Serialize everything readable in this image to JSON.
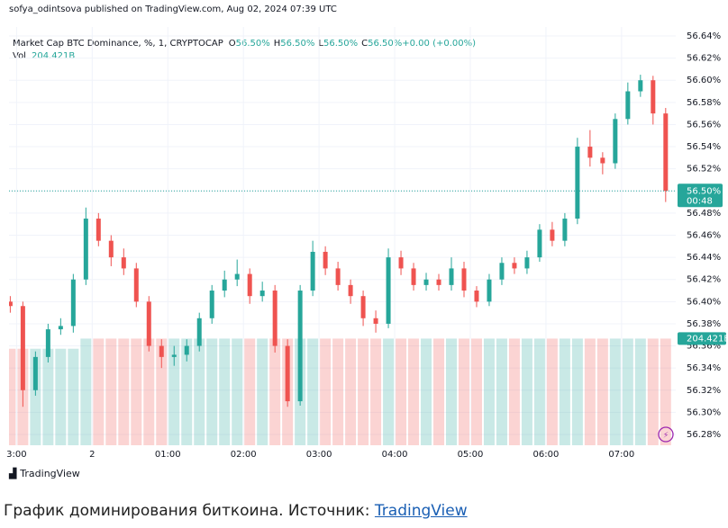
{
  "header": {
    "author": "sofya_odintsova published on TradingView.com, Aug 02, 2024 07:39 UTC"
  },
  "chart_data": {
    "type": "candlestick",
    "title": "Market Cap BTC Dominance, %, 1, CRYPTOCAP",
    "legend_ohlc": [
      {
        "key": "O",
        "text": "56.50%"
      },
      {
        "key": "H",
        "text": "56.50%"
      },
      {
        "key": "L",
        "text": "56.50%"
      },
      {
        "key": "C",
        "text": "56.50%"
      },
      {
        "key": "",
        "text": "+0.00 (+0.00%)"
      }
    ],
    "volume_title": "Vol",
    "volume_text": "204.421B",
    "up_color": "#26a69a",
    "down_color": "#ef5350",
    "x": [
      -5,
      5,
      15,
      25,
      35,
      45,
      55,
      65,
      75,
      85,
      95,
      105,
      115,
      125,
      135,
      145,
      155,
      165,
      175,
      185,
      195,
      205,
      215,
      225,
      235,
      245,
      255,
      265,
      275,
      285,
      295,
      305,
      315,
      325,
      335,
      345,
      355,
      365,
      375,
      385,
      395,
      405,
      415,
      425,
      435,
      445,
      455,
      465,
      475,
      485,
      495,
      505,
      515
    ],
    "open": [
      56.4,
      56.396,
      56.32,
      56.35,
      56.375,
      56.378,
      56.42,
      56.475,
      56.455,
      56.44,
      56.43,
      56.4,
      56.36,
      56.35,
      56.352,
      56.36,
      56.385,
      56.41,
      56.42,
      56.425,
      56.405,
      56.41,
      56.36,
      56.31,
      56.41,
      56.445,
      56.43,
      56.415,
      56.405,
      56.385,
      56.38,
      56.44,
      56.43,
      56.415,
      56.42,
      56.415,
      56.43,
      56.41,
      56.4,
      56.42,
      56.435,
      56.43,
      56.44,
      56.465,
      56.455,
      56.475,
      56.54,
      56.53,
      56.525,
      56.565,
      56.59,
      56.6,
      56.57
    ],
    "high": [
      56.405,
      56.4,
      56.355,
      56.38,
      56.385,
      56.425,
      56.485,
      56.48,
      56.46,
      56.448,
      56.435,
      56.405,
      56.366,
      56.36,
      56.366,
      56.39,
      56.415,
      56.428,
      56.438,
      56.43,
      56.418,
      56.415,
      56.366,
      56.415,
      56.455,
      56.45,
      56.436,
      56.42,
      56.41,
      56.392,
      56.448,
      56.446,
      56.435,
      56.426,
      56.425,
      56.44,
      56.436,
      56.414,
      56.425,
      56.44,
      56.44,
      56.446,
      56.47,
      56.472,
      56.48,
      56.548,
      56.555,
      56.535,
      56.57,
      56.598,
      56.605,
      56.604,
      56.575
    ],
    "low": [
      56.39,
      56.305,
      56.315,
      56.345,
      56.37,
      56.372,
      56.415,
      56.45,
      56.432,
      56.424,
      56.395,
      56.355,
      56.34,
      56.342,
      56.346,
      56.355,
      56.38,
      56.404,
      56.414,
      56.398,
      56.4,
      56.354,
      56.305,
      56.306,
      56.405,
      56.424,
      56.41,
      56.398,
      56.378,
      56.372,
      56.376,
      56.424,
      56.41,
      56.41,
      56.41,
      56.41,
      56.404,
      56.395,
      56.396,
      56.415,
      56.425,
      56.425,
      56.436,
      56.45,
      56.45,
      56.47,
      56.522,
      56.515,
      56.52,
      56.56,
      56.585,
      56.56,
      56.49
    ],
    "close": [
      56.396,
      56.32,
      56.35,
      56.375,
      56.378,
      56.42,
      56.475,
      56.455,
      56.44,
      56.43,
      56.4,
      56.36,
      56.35,
      56.352,
      56.36,
      56.385,
      56.41,
      56.42,
      56.425,
      56.405,
      56.41,
      56.36,
      56.31,
      56.41,
      56.445,
      56.43,
      56.415,
      56.405,
      56.385,
      56.38,
      56.44,
      56.43,
      56.415,
      56.42,
      56.415,
      56.43,
      56.41,
      56.4,
      56.42,
      56.435,
      56.43,
      56.44,
      56.465,
      56.455,
      56.475,
      56.54,
      56.53,
      56.525,
      56.565,
      56.59,
      56.6,
      56.57,
      56.5
    ],
    "volume": [
      185,
      185,
      185,
      185,
      185,
      185,
      204.421,
      204.421,
      204.421,
      204.421,
      204.421,
      204.421,
      204.421,
      204.421,
      204.421,
      204.421,
      204.421,
      204.421,
      204.421,
      204.421,
      204.421,
      204.421,
      204.421,
      204.421,
      204.421,
      204.421,
      204.421,
      204.421,
      204.421,
      204.421,
      204.421,
      204.421,
      204.421,
      204.421,
      204.421,
      204.421,
      204.421,
      204.421,
      204.421,
      204.421,
      204.421,
      204.421,
      204.421,
      204.421,
      204.421,
      204.421,
      204.421,
      204.421,
      204.421,
      204.421,
      204.421,
      204.421,
      204.421
    ],
    "vlim": [
      0,
      400
    ],
    "xlim": [
      -6,
      523
    ],
    "xticks": [
      {
        "value": 0,
        "label": "3:00"
      },
      {
        "value": 60,
        "label": "2"
      },
      {
        "value": 120,
        "label": "01:00"
      },
      {
        "value": 180,
        "label": "02:00"
      },
      {
        "value": 240,
        "label": "03:00"
      },
      {
        "value": 300,
        "label": "04:00"
      },
      {
        "value": 360,
        "label": "05:00"
      },
      {
        "value": 420,
        "label": "06:00"
      },
      {
        "value": 480,
        "label": "07:00"
      }
    ],
    "ylim": [
      56.28,
      56.64
    ],
    "yticks": [
      {
        "value": 56.28,
        "label": "56.28%"
      },
      {
        "value": 56.3,
        "label": "56.30%"
      },
      {
        "value": 56.32,
        "label": "56.32%"
      },
      {
        "value": 56.34,
        "label": "56.34%"
      },
      {
        "value": 56.36,
        "label": "56.36%"
      },
      {
        "value": 56.38,
        "label": "56.38%"
      },
      {
        "value": 56.4,
        "label": "56.40%"
      },
      {
        "value": 56.42,
        "label": "56.42%"
      },
      {
        "value": 56.44,
        "label": "56.44%"
      },
      {
        "value": 56.46,
        "label": "56.46%"
      },
      {
        "value": 56.48,
        "label": "56.48%"
      },
      {
        "value": 56.5,
        "label": "56.50%"
      },
      {
        "value": 56.52,
        "label": "56.52%"
      },
      {
        "value": 56.54,
        "label": "56.54%"
      },
      {
        "value": 56.56,
        "label": "56.56%"
      },
      {
        "value": 56.58,
        "label": "56.58%"
      },
      {
        "value": 56.6,
        "label": "56.60%"
      },
      {
        "value": 56.62,
        "label": "56.62%"
      },
      {
        "value": 56.64,
        "label": "56.64%"
      }
    ],
    "grid": true,
    "last_price": {
      "value": 56.5,
      "label": "56.50%"
    },
    "countdown": "00:48"
  },
  "footer": {
    "logo": "TradingView",
    "caption": "График доминирования биткоина. Источник: ",
    "link": "TradingView"
  }
}
